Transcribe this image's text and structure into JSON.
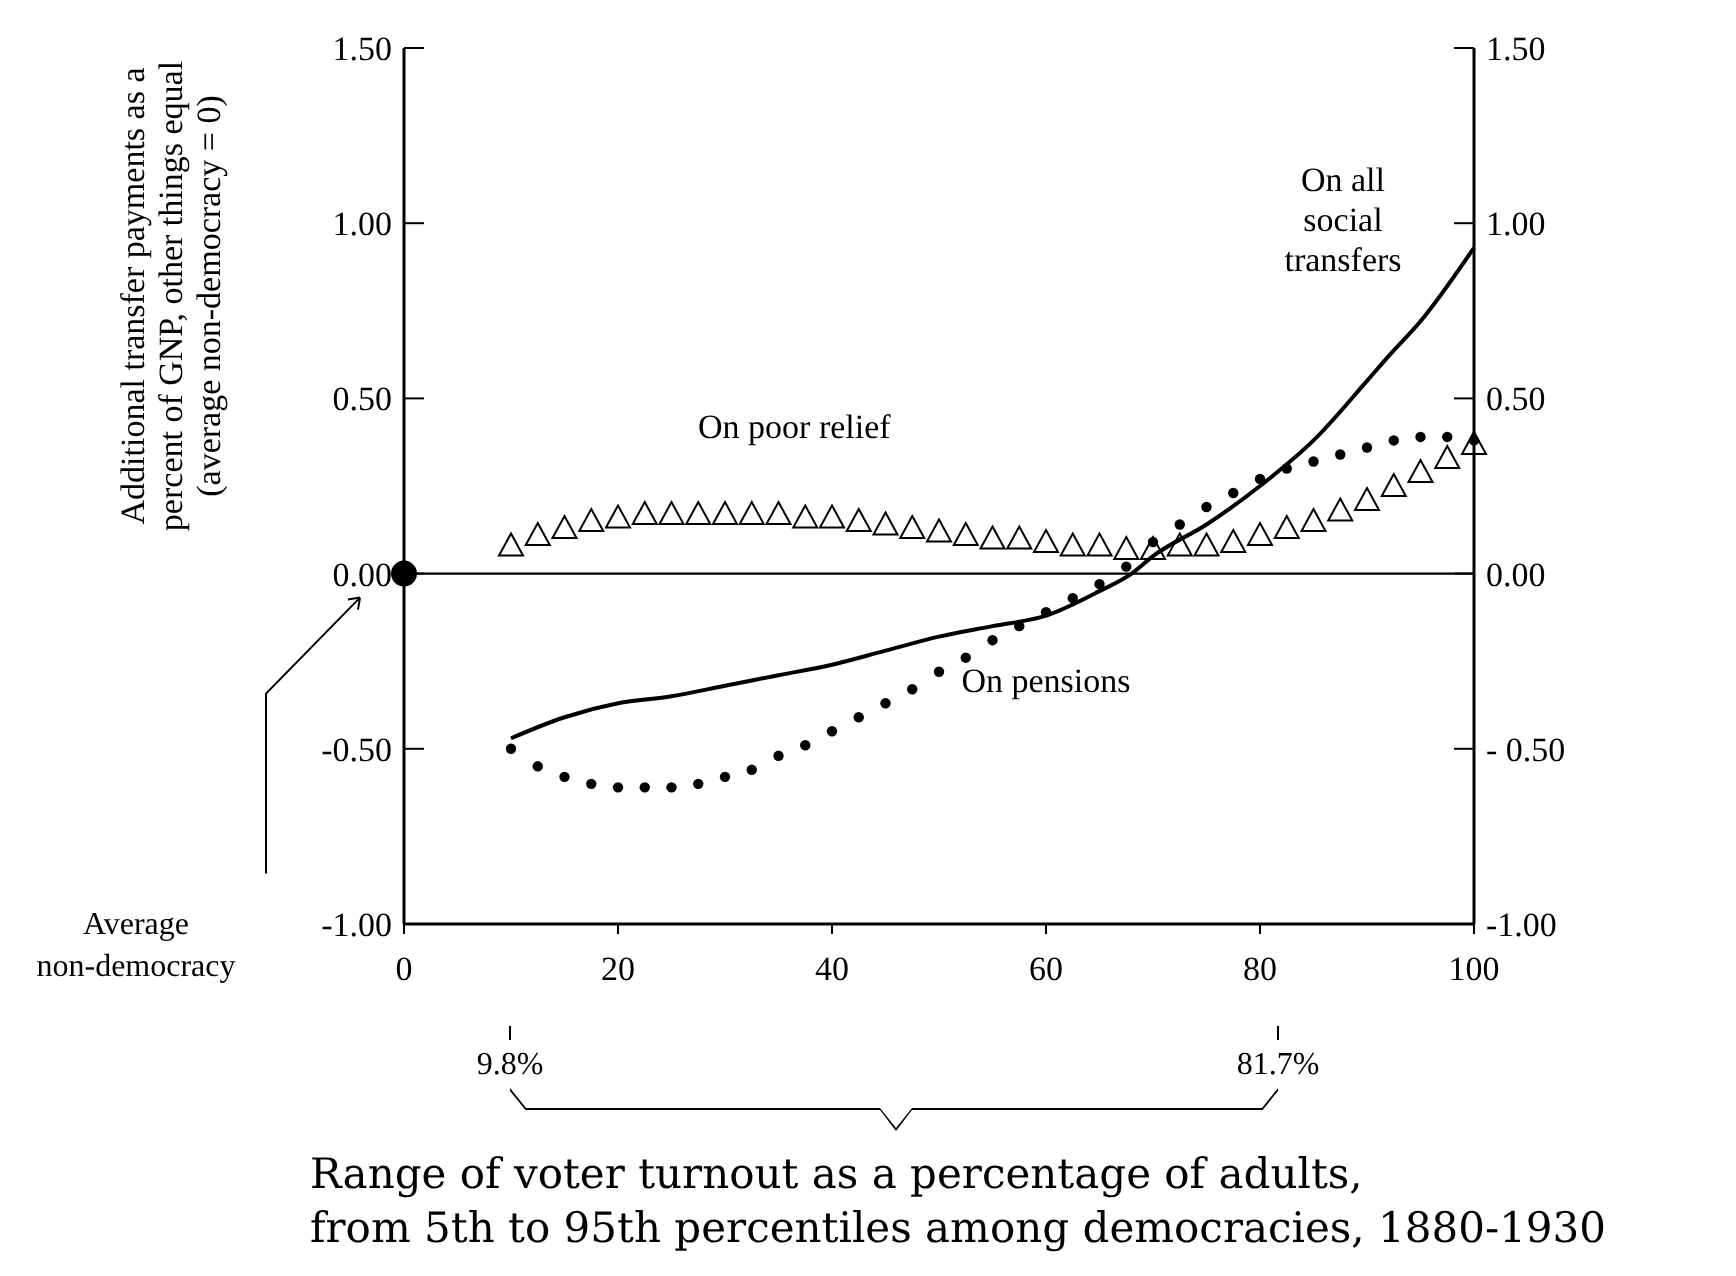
{
  "chart_data": {
    "type": "line",
    "xlabel": "Range of voter turnout as a percentage of adults, from 5th to 95th percentiles among democracies, 1880-1930",
    "ylabel": "Additional transfer payments as a percent of GNP, other things equal (average non-democracy = 0)",
    "xlim": [
      0,
      100
    ],
    "xticks": [
      0,
      20,
      40,
      60,
      80,
      100
    ],
    "ylim": [
      -1,
      1.5
    ],
    "yticks": [
      {
        "value": -1,
        "label": "-1.00"
      },
      {
        "value": -0.5,
        "label": "-0.50"
      },
      {
        "value": 0,
        "label": "0.00"
      },
      {
        "value": 0.5,
        "label": "0.50"
      },
      {
        "value": 1,
        "label": "1.00"
      },
      {
        "value": 1.5,
        "label": "1.50"
      }
    ],
    "y2lim": [
      -1,
      1.5
    ],
    "y2ticks": [
      {
        "value": -1,
        "label": "-1.00"
      },
      {
        "value": -0.5,
        "label": "- 0.50"
      },
      {
        "value": 0,
        "label": "0.00"
      },
      {
        "value": 0.5,
        "label": "0.50"
      },
      {
        "value": 1,
        "label": "1.00"
      },
      {
        "value": 1.5,
        "label": "1.50"
      }
    ],
    "grid": false,
    "legend": false,
    "series": [
      {
        "name": "On all social transfers",
        "type": "line",
        "color": "#000000",
        "marker": "none",
        "line_style": "solid",
        "x": [
          10,
          15,
          20,
          25,
          30,
          35,
          40,
          45,
          50,
          55,
          60,
          65,
          68,
          70,
          75,
          80,
          85,
          90,
          92,
          95,
          100
        ],
        "values": [
          -0.47,
          -0.41,
          -0.37,
          -0.35,
          -0.32,
          -0.29,
          -0.26,
          -0.22,
          -0.18,
          -0.15,
          -0.12,
          -0.05,
          0,
          0.05,
          0.14,
          0.25,
          0.38,
          0.55,
          0.62,
          0.72,
          0.93
        ]
      },
      {
        "name": "On pensions",
        "type": "scatter",
        "color": "#000000",
        "marker": "circle",
        "x": [
          10,
          12.5,
          15,
          17.5,
          20,
          22.5,
          25,
          27.5,
          30,
          32.5,
          35,
          37.5,
          40,
          42.5,
          45,
          47.5,
          50,
          52.5,
          55,
          57.5,
          60,
          62.5,
          65,
          67.5,
          70,
          72.5,
          75,
          77.5,
          80,
          82.5,
          85,
          87.5,
          90,
          92.5,
          95,
          97.5,
          100
        ],
        "values": [
          -0.5,
          -0.55,
          -0.58,
          -0.6,
          -0.61,
          -0.61,
          -0.61,
          -0.6,
          -0.58,
          -0.56,
          -0.52,
          -0.49,
          -0.45,
          -0.41,
          -0.37,
          -0.33,
          -0.28,
          -0.24,
          -0.19,
          -0.15,
          -0.11,
          -0.07,
          -0.03,
          0.02,
          0.09,
          0.14,
          0.19,
          0.23,
          0.27,
          0.3,
          0.32,
          0.34,
          0.36,
          0.38,
          0.39,
          0.39,
          0.38
        ]
      },
      {
        "name": "On poor relief",
        "type": "scatter",
        "color": "#000000",
        "marker": "triangle",
        "x": [
          10,
          12.5,
          15,
          17.5,
          20,
          22.5,
          25,
          27.5,
          30,
          32.5,
          35,
          37.5,
          40,
          42.5,
          45,
          47.5,
          50,
          52.5,
          55,
          57.5,
          60,
          62.5,
          65,
          67.5,
          70,
          72.5,
          75,
          77.5,
          80,
          82.5,
          85,
          87.5,
          90,
          92.5,
          95,
          97.5,
          100
        ],
        "values": [
          0.08,
          0.11,
          0.13,
          0.15,
          0.16,
          0.17,
          0.17,
          0.17,
          0.17,
          0.17,
          0.17,
          0.16,
          0.16,
          0.15,
          0.14,
          0.13,
          0.12,
          0.11,
          0.1,
          0.1,
          0.09,
          0.08,
          0.08,
          0.07,
          0.07,
          0.08,
          0.08,
          0.09,
          0.11,
          0.13,
          0.15,
          0.18,
          0.21,
          0.25,
          0.29,
          0.33,
          0.37
        ]
      },
      {
        "type": "scatter",
        "color": "#000000",
        "marker": "circle",
        "x": [
          0
        ],
        "values": [
          0
        ]
      }
    ],
    "ref_lines": [
      {
        "axis": "y",
        "value": 0
      }
    ],
    "annotations": [
      "Average non-democracy",
      "9.8%",
      "81.7%"
    ]
  }
}
